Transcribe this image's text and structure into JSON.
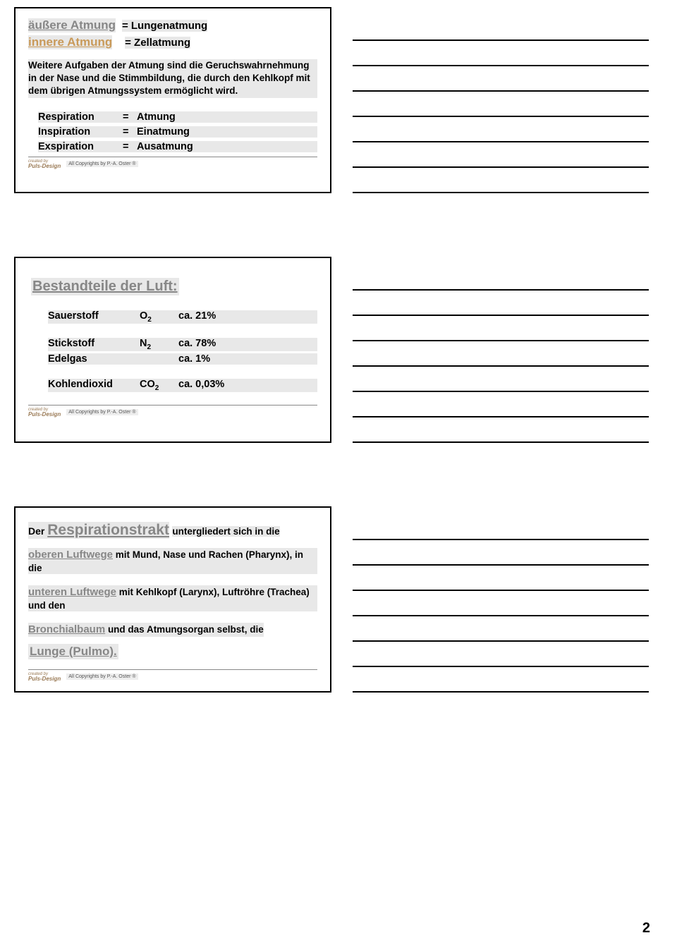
{
  "slide1": {
    "term1": "äußere Atmung",
    "eq1": "=  Lungenatmung",
    "term2": "innere Atmung",
    "eq2": "=  Zellatmung",
    "para": "Weitere Aufgaben der Atmung sind die Geruchswahrnehmung in der Nase und die Stimmbildung, die durch den Kehlkopf mit dem übrigen Atmungssystem ermöglicht wird.",
    "defs": [
      {
        "term": "Respiration",
        "val": "Atmung"
      },
      {
        "term": "Inspiration",
        "val": "Einatmung"
      },
      {
        "term": "Exspiration",
        "val": "Ausatmung"
      }
    ],
    "copyright": "All Copyrights by P.-A. Oster ®",
    "logo1": "created  by",
    "logo2": "Puls-Design"
  },
  "slide2": {
    "title": "Bestandteile der Luft:",
    "rows": [
      {
        "name": "Sauerstoff",
        "sym": "O",
        "sub": "2",
        "pct": "ca.   21%"
      },
      {
        "name": "Stickstoff",
        "sym": "N",
        "sub": "2",
        "pct": "ca.   78%"
      },
      {
        "name": "Edelgas",
        "sym": "",
        "sub": "",
        "pct": "ca.   1%"
      },
      {
        "name": "Kohlendioxid",
        "sym": "CO",
        "sub": "2",
        "pct": "ca. 0,03%"
      }
    ],
    "copyright": "All Copyrights by P.-A. Oster ®",
    "logo1": "created  by",
    "logo2": "Puls-Design"
  },
  "slide3": {
    "der": "Der ",
    "title": "Respirationstrakt",
    "sub": "untergliedert sich in die",
    "p1a": "oberen Luftwege",
    "p1b": " mit Mund, Nase und Rachen (Pharynx), in die",
    "p2a": "unteren Luftwege",
    "p2b": " mit Kehlkopf (Larynx), Luftröhre (Trachea) und den",
    "p3a": "Bronchialbaum",
    "p3b": " und das Atmungsorgan selbst, die",
    "lunge": "Lunge (Pulmo).",
    "copyright": "All Copyrights by P.-A. Oster ®",
    "logo1": "created  by",
    "logo2": "Puls-Design"
  },
  "pageNumber": "2",
  "noteLines": {
    "s1": 7,
    "s2": 7,
    "s3": 7
  }
}
